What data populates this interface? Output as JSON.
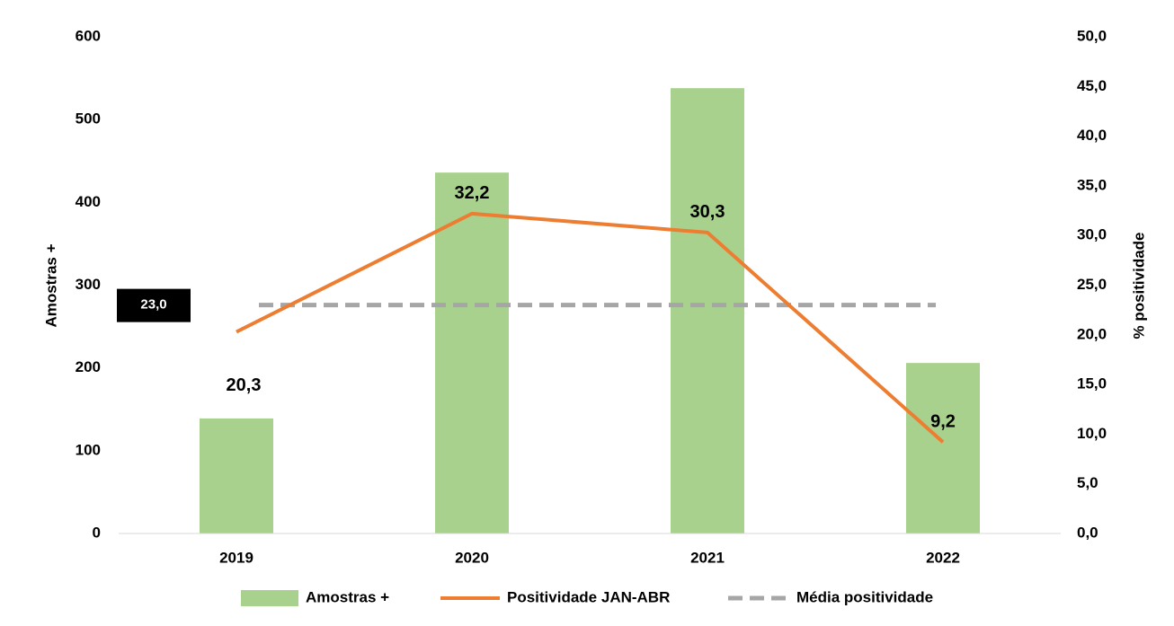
{
  "chart_data": {
    "type": "bar_line",
    "categories": [
      "2019",
      "2020",
      "2021",
      "2022"
    ],
    "series": [
      {
        "name": "Amostras +",
        "type": "bar",
        "color": "#a9d18e",
        "values": [
          139,
          436,
          538,
          206
        ]
      },
      {
        "name": "Positividade JAN-ABR",
        "type": "line",
        "axis": "y2",
        "color": "#ed7d31",
        "values": [
          20.3,
          32.2,
          30.3,
          9.2
        ],
        "value_labels": [
          "20,3",
          "32,2",
          "30,3",
          "9,2"
        ]
      }
    ],
    "reference_line": {
      "name": "Média positividade",
      "axis": "y2",
      "color": "#a6a6a6",
      "value": 23.0,
      "label": "23,0"
    },
    "y_label": "Amostras +",
    "y2_label": "% positividade",
    "ylim": [
      0,
      600
    ],
    "yticks": [
      0,
      100,
      200,
      300,
      400,
      500,
      600
    ],
    "y2lim": [
      0,
      50
    ],
    "y2ticks": [
      {
        "value": 0,
        "label": "0,0"
      },
      {
        "value": 5,
        "label": "5,0"
      },
      {
        "value": 10,
        "label": "10,0"
      },
      {
        "value": 15,
        "label": "15,0"
      },
      {
        "value": 20,
        "label": "20,0"
      },
      {
        "value": 25,
        "label": "25,0"
      },
      {
        "value": 30,
        "label": "30,0"
      },
      {
        "value": 35,
        "label": "35,0"
      },
      {
        "value": 40,
        "label": "40,0"
      },
      {
        "value": 45,
        "label": "45,0"
      },
      {
        "value": 50,
        "label": "50,0"
      }
    ],
    "legend": "bottom"
  }
}
